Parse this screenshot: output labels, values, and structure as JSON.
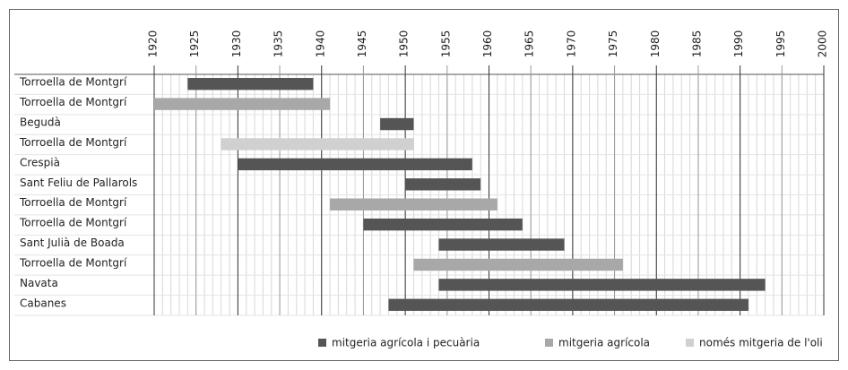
{
  "chart_data": {
    "type": "gantt",
    "categories": [
      "Torroella de Montgrí",
      "Torroella de Montgrí",
      "Begudà",
      "Torroella de Montgrí",
      "Crespià",
      "Sant Feliu de Pallarols",
      "Torroella de Montgrí",
      "Torroella de Montgrí",
      "Sant Julià de Boada",
      "Torroella de Montgrí",
      "Navata",
      "Cabanes"
    ],
    "series": [
      {
        "name": "mitgeria agrícola i pecuària",
        "color": "#555555",
        "start": [
          1924,
          null,
          1947,
          null,
          1930,
          1950,
          null,
          1945,
          1954,
          null,
          1954,
          1948
        ],
        "end": [
          1939,
          null,
          1951,
          null,
          1958,
          1959,
          null,
          1964,
          1969,
          null,
          1993,
          1991
        ]
      },
      {
        "name": "mitgeria agrícola",
        "color": "#a8a8a8",
        "start": [
          null,
          1920,
          null,
          null,
          null,
          null,
          1941,
          null,
          null,
          1951,
          null,
          null
        ],
        "end": [
          null,
          1941,
          null,
          null,
          null,
          null,
          1961,
          null,
          null,
          1976,
          null,
          null
        ]
      },
      {
        "name": "només mitgeria de l'oli",
        "color": "#d0d0d0",
        "start": [
          null,
          null,
          null,
          1928,
          null,
          null,
          null,
          null,
          null,
          null,
          null,
          null
        ],
        "end": [
          null,
          null,
          null,
          1951,
          null,
          null,
          null,
          null,
          null,
          null,
          null,
          null
        ]
      }
    ],
    "xlim": [
      1920,
      2000
    ],
    "xticks": [
      1920,
      1925,
      1930,
      1935,
      1940,
      1945,
      1950,
      1955,
      1960,
      1965,
      1970,
      1975,
      1980,
      1985,
      1990,
      1995,
      2000
    ],
    "grid": true,
    "legend": "bottom"
  }
}
